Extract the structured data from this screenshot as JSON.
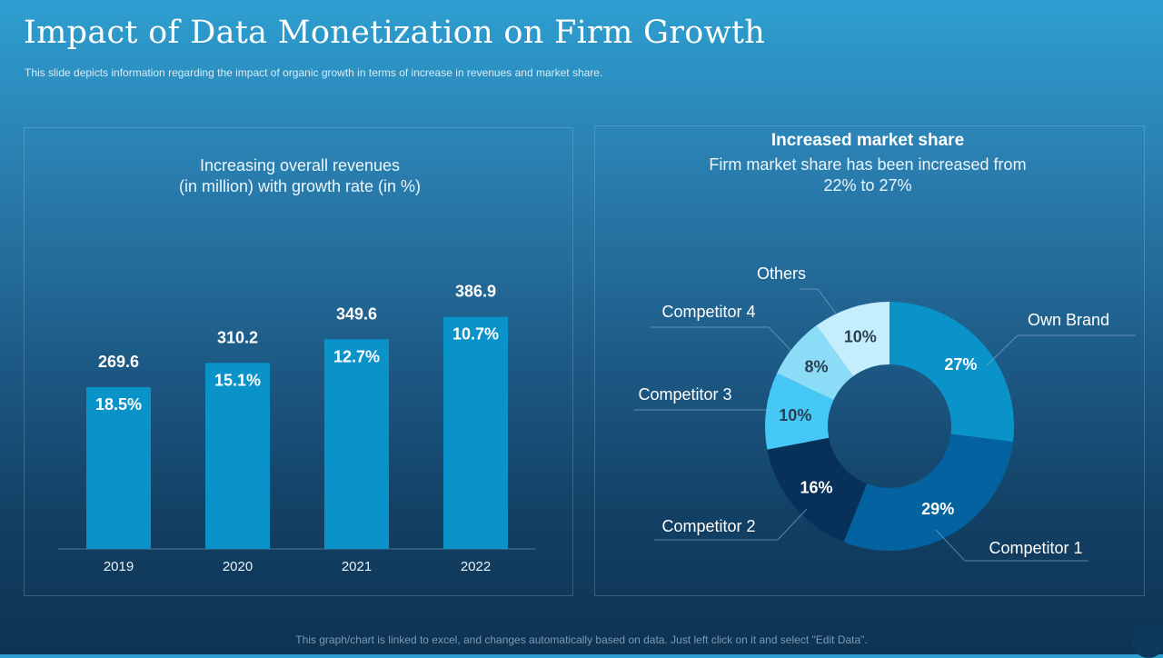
{
  "title": "Impact of Data Monetization on Firm Growth",
  "subtitle": "This slide depicts information  regarding the impact of organic growth  in terms of increase in revenues  and market share.",
  "footer": "This graph/chart is linked to excel, and changes automatically based on data. Just left click on it and select \"Edit Data\".",
  "colors": {
    "bar": "#0a93c9",
    "dark_label": "#2b3f52"
  },
  "chart_data": [
    {
      "type": "bar",
      "title_line1": "Increasing overall revenues",
      "title_line2": "(in million) with growth rate (in %)",
      "categories": [
        "2019",
        "2020",
        "2021",
        "2022"
      ],
      "values": [
        269.6,
        310.2,
        349.6,
        386.9
      ],
      "value_labels": [
        "269.6",
        "310.2",
        "349.6",
        "386.9"
      ],
      "growth_labels": [
        "18.5%",
        "15.1%",
        "12.7%",
        "10.7%"
      ],
      "ylim": [
        0,
        400
      ],
      "grid": false
    },
    {
      "type": "pie",
      "donut": true,
      "title": "Increased market share",
      "subtitle_line1": "Firm market share has been increased from",
      "subtitle_line2": "22% to 27%",
      "slices": [
        {
          "label": "Own Brand",
          "value": 27,
          "text": "27%",
          "color": "#0a93c9"
        },
        {
          "label": "Competitor 1",
          "value": 29,
          "text": "29%",
          "color": "#0462a0"
        },
        {
          "label": "Competitor 2",
          "value": 16,
          "text": "16%",
          "color": "#08315a"
        },
        {
          "label": "Competitor 3",
          "value": 10,
          "text": "10%",
          "color": "#45c8f5"
        },
        {
          "label": "Competitor 4",
          "value": 8,
          "text": "8%",
          "color": "#8adcf7"
        },
        {
          "label": "Others",
          "value": 10,
          "text": "10%",
          "color": "#c5eefc"
        }
      ]
    }
  ]
}
